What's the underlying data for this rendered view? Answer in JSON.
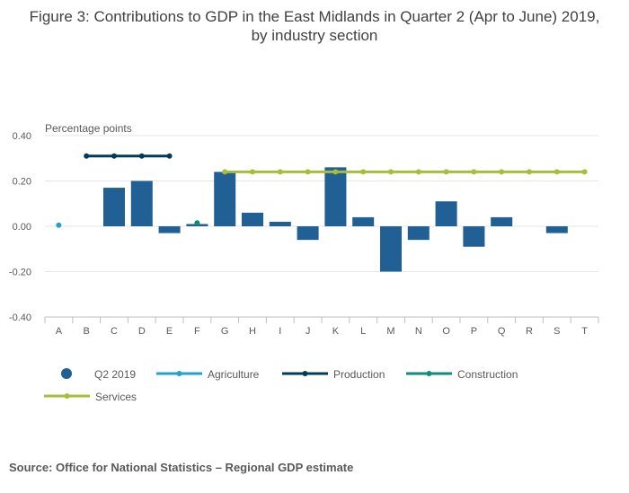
{
  "title": "Figure 3: Contributions to GDP in the East Midlands in Quarter 2 (Apr to June) 2019, by industry section",
  "source": "Source: Office for National Statistics – Regional GDP estimate",
  "chart_data": {
    "type": "bar",
    "title": "Figure 3: Contributions to GDP in the East Midlands in Quarter 2 (Apr to June) 2019, by industry section",
    "ylabel": "Percentage points",
    "xlabel": "",
    "categories": [
      "A",
      "B",
      "C",
      "D",
      "E",
      "F",
      "G",
      "H",
      "I",
      "J",
      "K",
      "L",
      "M",
      "N",
      "O",
      "P",
      "Q",
      "R",
      "S",
      "T"
    ],
    "ylim": [
      -0.4,
      0.4
    ],
    "yticks": [
      0.4,
      0.2,
      0.0,
      -0.2,
      -0.4
    ],
    "ytick_labels": [
      "0.40",
      "0.20",
      "0.00",
      "-0.20",
      "-0.40"
    ],
    "grid": true,
    "legend_position": "bottom",
    "bars": {
      "name": "Q2 2019",
      "color": "#206095",
      "values": [
        null,
        null,
        0.17,
        0.2,
        -0.03,
        0.01,
        0.24,
        0.06,
        0.02,
        -0.06,
        0.26,
        0.04,
        -0.2,
        -0.06,
        0.11,
        -0.09,
        0.04,
        null,
        -0.03,
        null
      ]
    },
    "lines": [
      {
        "name": "Agriculture",
        "color": "#27a0cc",
        "categories": [
          "A"
        ],
        "value": 0.005
      },
      {
        "name": "Production",
        "color": "#003c57",
        "categories": [
          "B",
          "C",
          "D",
          "E"
        ],
        "value": 0.31
      },
      {
        "name": "Construction",
        "color": "#118c7b",
        "categories": [
          "F"
        ],
        "value": 0.015
      },
      {
        "name": "Services",
        "color": "#a8bd3a",
        "categories": [
          "G",
          "H",
          "I",
          "J",
          "K",
          "L",
          "M",
          "N",
          "O",
          "P",
          "Q",
          "R",
          "S",
          "T"
        ],
        "value": 0.24
      }
    ]
  }
}
